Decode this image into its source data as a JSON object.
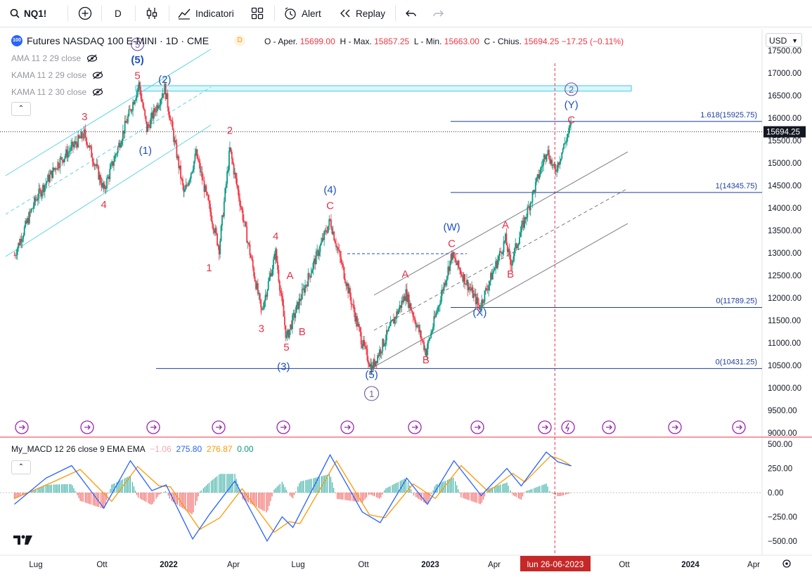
{
  "toolbar": {
    "symbol": "NQ1!",
    "interval": "D",
    "indicators_label": "Indicatori",
    "alert_label": "Alert",
    "replay_label": "Replay"
  },
  "legend": {
    "title": "Futures NASDAQ 100 E-MINI · 1D · CME",
    "badge_text": "100",
    "status_letter": "D",
    "o_label": "O - Aper.",
    "o_value": "15699.00",
    "h_label": "H - Max.",
    "h_value": "15857.25",
    "l_label": "L - Min.",
    "l_value": "15663.00",
    "c_label": "C - Chius.",
    "c_value": "15694.25",
    "change": "−17.25 (−0.11%)"
  },
  "indicators": [
    {
      "label": "AMA 11 2 29 close"
    },
    {
      "label": "KAMA 11 2 29 close"
    },
    {
      "label": "KAMA 11 2 30 close"
    }
  ],
  "macd_legend": {
    "name": "My_MACD 12 26 close 9 EMA EMA",
    "hist": "−1.06",
    "macd": "275.80",
    "signal": "276.87",
    "zero": "0.00"
  },
  "currency": "USD",
  "colors": {
    "up": "#089981",
    "down": "#f23645",
    "wave_blue": "#1e4fc2",
    "wave_red": "#e5334b",
    "channel_cyan": "#5fd3e8",
    "channel_gray": "#787b86",
    "macd_line": "#2962ff",
    "signal_line": "#ff9800",
    "event_purple": "#9c27b0"
  },
  "chart_data": [
    {
      "type": "candlestick",
      "title": "Futures NASDAQ 100 E-MINI · 1D · CME",
      "x_ticks": [
        "Lug",
        "Ott",
        "2022",
        "Apr",
        "Lug",
        "Ott",
        "2023",
        "Apr",
        "lun 26-06-2023",
        "Ott",
        "2024",
        "Apr"
      ],
      "y_ticks": [
        "17500.00",
        "17000.00",
        "16500.00",
        "16000.00",
        "15500.00",
        "15000.00",
        "14500.00",
        "14000.00",
        "13500.00",
        "13000.00",
        "12500.00",
        "12000.00",
        "11500.00",
        "11000.00",
        "10500.00",
        "10000.00",
        "9500.00",
        "9000.00"
      ],
      "ylim": [
        8880,
        17700
      ],
      "last_price": "15694.25",
      "price_path": [
        {
          "date": "2021-06-01",
          "close": 12950
        },
        {
          "date": "2021-07-01",
          "close": 14200
        },
        {
          "date": "2021-08-01",
          "close": 15000
        },
        {
          "date": "2021-09-07",
          "close": 15650
        },
        {
          "date": "2021-10-04",
          "close": 14400
        },
        {
          "date": "2021-11-22",
          "close": 16750
        },
        {
          "date": "2021-12-03",
          "close": 15750
        },
        {
          "date": "2021-12-28",
          "close": 16670
        },
        {
          "date": "2022-01-24",
          "close": 14300
        },
        {
          "date": "2022-02-10",
          "close": 15200
        },
        {
          "date": "2022-03-14",
          "close": 13100
        },
        {
          "date": "2022-03-29",
          "close": 15300
        },
        {
          "date": "2022-05-12",
          "close": 11700
        },
        {
          "date": "2022-06-01",
          "close": 13000
        },
        {
          "date": "2022-06-16",
          "close": 11100
        },
        {
          "date": "2022-07-01",
          "close": 11800
        },
        {
          "date": "2022-08-16",
          "close": 13720
        },
        {
          "date": "2022-09-30",
          "close": 11000
        },
        {
          "date": "2022-10-13",
          "close": 10431
        },
        {
          "date": "2022-11-30",
          "close": 12100
        },
        {
          "date": "2022-12-28",
          "close": 10800
        },
        {
          "date": "2023-02-02",
          "close": 12950
        },
        {
          "date": "2023-03-13",
          "close": 11800
        },
        {
          "date": "2023-04-18",
          "close": 13300
        },
        {
          "date": "2023-04-25",
          "close": 12750
        },
        {
          "date": "2023-06-15",
          "close": 15300
        },
        {
          "date": "2023-06-26",
          "close": 14800
        },
        {
          "date": "2023-07-19",
          "close": 15857
        }
      ],
      "wave_labels": [
        {
          "text": "(5)",
          "date": "2021-11-20",
          "price": 17220,
          "color": "blue",
          "circled_above": "5"
        },
        {
          "text": "5",
          "date": "2021-11-20",
          "price": 16870,
          "color": "red"
        },
        {
          "text": "3",
          "date": "2021-09-07",
          "price": 15950,
          "color": "red"
        },
        {
          "text": "4",
          "date": "2021-10-04",
          "price": 14000,
          "color": "red"
        },
        {
          "text": "(2)",
          "date": "2021-12-28",
          "price": 16780,
          "color": "blue"
        },
        {
          "text": "(1)",
          "date": "2021-12-01",
          "price": 15200,
          "color": "blue"
        },
        {
          "text": "2",
          "date": "2022-03-29",
          "price": 15650,
          "color": "red"
        },
        {
          "text": "1",
          "date": "2022-02-28",
          "price": 12590,
          "color": "red"
        },
        {
          "text": "4",
          "date": "2022-06-01",
          "price": 13300,
          "color": "red"
        },
        {
          "text": "3",
          "date": "2022-05-12",
          "price": 11240,
          "color": "red"
        },
        {
          "text": "A",
          "date": "2022-06-21",
          "price": 12420,
          "color": "red"
        },
        {
          "text": "5",
          "date": "2022-06-16",
          "price": 10830,
          "color": "red"
        },
        {
          "text": "B",
          "date": "2022-07-08",
          "price": 11170,
          "color": "red"
        },
        {
          "text": "(3)",
          "date": "2022-06-12",
          "price": 10400,
          "color": "blue"
        },
        {
          "text": "(4)",
          "date": "2022-08-16",
          "price": 14330,
          "color": "blue"
        },
        {
          "text": "C",
          "date": "2022-08-16",
          "price": 13980,
          "color": "red"
        },
        {
          "text": "(5)",
          "date": "2022-10-13",
          "price": 10220,
          "color": "blue",
          "circled_below": "1"
        },
        {
          "text": "A",
          "date": "2022-11-29",
          "price": 12450,
          "color": "red"
        },
        {
          "text": "B",
          "date": "2022-12-28",
          "price": 10550,
          "color": "red"
        },
        {
          "text": "(W)",
          "date": "2023-02-02",
          "price": 13500,
          "color": "blue"
        },
        {
          "text": "C",
          "date": "2023-02-02",
          "price": 13130,
          "color": "red"
        },
        {
          "text": "(X)",
          "date": "2023-03-13",
          "price": 11600,
          "color": "blue"
        },
        {
          "text": "A",
          "date": "2023-04-18",
          "price": 13550,
          "color": "red"
        },
        {
          "text": "B",
          "date": "2023-04-25",
          "price": 12450,
          "color": "red"
        },
        {
          "text": "C",
          "date": "2023-07-19",
          "price": 15880,
          "color": "red"
        },
        {
          "text": "(Y)",
          "date": "2023-07-19",
          "price": 16220,
          "color": "blue",
          "circled_above": "2"
        }
      ],
      "fib_levels": [
        {
          "label": "1.618(15925.75)",
          "price": 15925.75
        },
        {
          "label": "1(14345.75)",
          "price": 14345.75
        },
        {
          "label": "0(11789.25)",
          "price": 11789.25
        },
        {
          "label": "0(10431.25)",
          "price": 10431.25
        }
      ],
      "resistance_zone": [
        16600,
        16720
      ],
      "grid": false
    },
    {
      "type": "line",
      "title": "My_MACD 12 26 close 9 EMA EMA",
      "y_ticks": [
        "500.00",
        "250.00",
        "0.00",
        "−250.00",
        "−500.00"
      ],
      "ylim": [
        -580,
        520
      ],
      "series": [
        {
          "name": "MACD",
          "points": [
            {
              "date": "2021-06-01",
              "value": -120
            },
            {
              "date": "2021-07-15",
              "value": 150
            },
            {
              "date": "2021-08-20",
              "value": 280
            },
            {
              "date": "2021-10-04",
              "value": -160
            },
            {
              "date": "2021-11-10",
              "value": 330
            },
            {
              "date": "2021-12-10",
              "value": 20
            },
            {
              "date": "2021-12-30",
              "value": 80
            },
            {
              "date": "2022-02-05",
              "value": -480
            },
            {
              "date": "2022-03-01",
              "value": -220
            },
            {
              "date": "2022-04-05",
              "value": 120
            },
            {
              "date": "2022-05-20",
              "value": -500
            },
            {
              "date": "2022-06-10",
              "value": -250
            },
            {
              "date": "2022-06-25",
              "value": -360
            },
            {
              "date": "2022-08-16",
              "value": 390
            },
            {
              "date": "2022-09-30",
              "value": -200
            },
            {
              "date": "2022-10-25",
              "value": -310
            },
            {
              "date": "2022-12-01",
              "value": 150
            },
            {
              "date": "2022-12-30",
              "value": -120
            },
            {
              "date": "2023-02-05",
              "value": 330
            },
            {
              "date": "2023-03-15",
              "value": -30
            },
            {
              "date": "2023-04-20",
              "value": 250
            },
            {
              "date": "2023-05-10",
              "value": 70
            },
            {
              "date": "2023-06-14",
              "value": 420
            },
            {
              "date": "2023-06-30",
              "value": 320
            },
            {
              "date": "2023-07-19",
              "value": 276
            }
          ]
        },
        {
          "name": "Signal",
          "points": [
            {
              "date": "2021-06-01",
              "value": -60
            },
            {
              "date": "2021-07-25",
              "value": 110
            },
            {
              "date": "2021-09-01",
              "value": 240
            },
            {
              "date": "2021-10-15",
              "value": -90
            },
            {
              "date": "2021-11-20",
              "value": 270
            },
            {
              "date": "2021-12-20",
              "value": 70
            },
            {
              "date": "2022-01-05",
              "value": 60
            },
            {
              "date": "2022-02-15",
              "value": -380
            },
            {
              "date": "2022-03-15",
              "value": -260
            },
            {
              "date": "2022-04-15",
              "value": 40
            },
            {
              "date": "2022-05-30",
              "value": -410
            },
            {
              "date": "2022-06-20",
              "value": -300
            },
            {
              "date": "2022-07-05",
              "value": -320
            },
            {
              "date": "2022-08-25",
              "value": 330
            },
            {
              "date": "2022-10-10",
              "value": -230
            },
            {
              "date": "2022-11-01",
              "value": -260
            },
            {
              "date": "2022-12-10",
              "value": 90
            },
            {
              "date": "2023-01-10",
              "value": -60
            },
            {
              "date": "2023-02-15",
              "value": 280
            },
            {
              "date": "2023-03-25",
              "value": 10
            },
            {
              "date": "2023-04-28",
              "value": 200
            },
            {
              "date": "2023-05-15",
              "value": 110
            },
            {
              "date": "2023-06-20",
              "value": 380
            },
            {
              "date": "2023-07-05",
              "value": 340
            },
            {
              "date": "2023-07-19",
              "value": 277
            }
          ]
        }
      ]
    }
  ]
}
